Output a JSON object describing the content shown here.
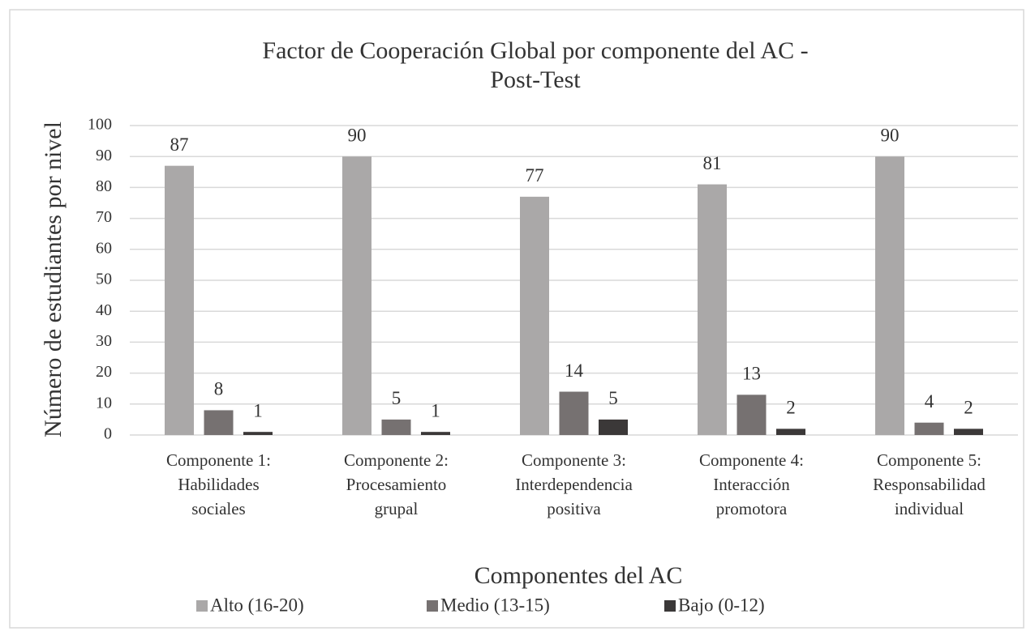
{
  "chart_data": {
    "type": "bar",
    "title": "Factor de Cooperación Global por componente del AC -\nPost-Test",
    "x_label": "Componentes del AC",
    "y_label": "Número de estudiantes por nivel",
    "categories": [
      "Componente 1:\nHabilidades\nsociales",
      "Componente 2:\nProcesamiento\ngrupal",
      "Componente 3:\nInterdependencia\npositiva",
      "Componente 4:\nInteracción\npromotora",
      "Componente 5:\nResponsabilidad\nindividual"
    ],
    "series": [
      {
        "name": "Alto (16-20)",
        "color": "#aaa8a8",
        "values": [
          87,
          90,
          77,
          81,
          90
        ]
      },
      {
        "name": "Medio (13-15)",
        "color": "#767171",
        "values": [
          8,
          5,
          14,
          13,
          4
        ]
      },
      {
        "name": "Bajo (0-12)",
        "color": "#3b3838",
        "values": [
          1,
          1,
          5,
          2,
          2
        ]
      }
    ],
    "ylim": [
      0,
      100
    ],
    "yticks": [
      0,
      10,
      20,
      30,
      40,
      50,
      60,
      70,
      80,
      90,
      100
    ],
    "grid": true,
    "legend": "bottom"
  }
}
